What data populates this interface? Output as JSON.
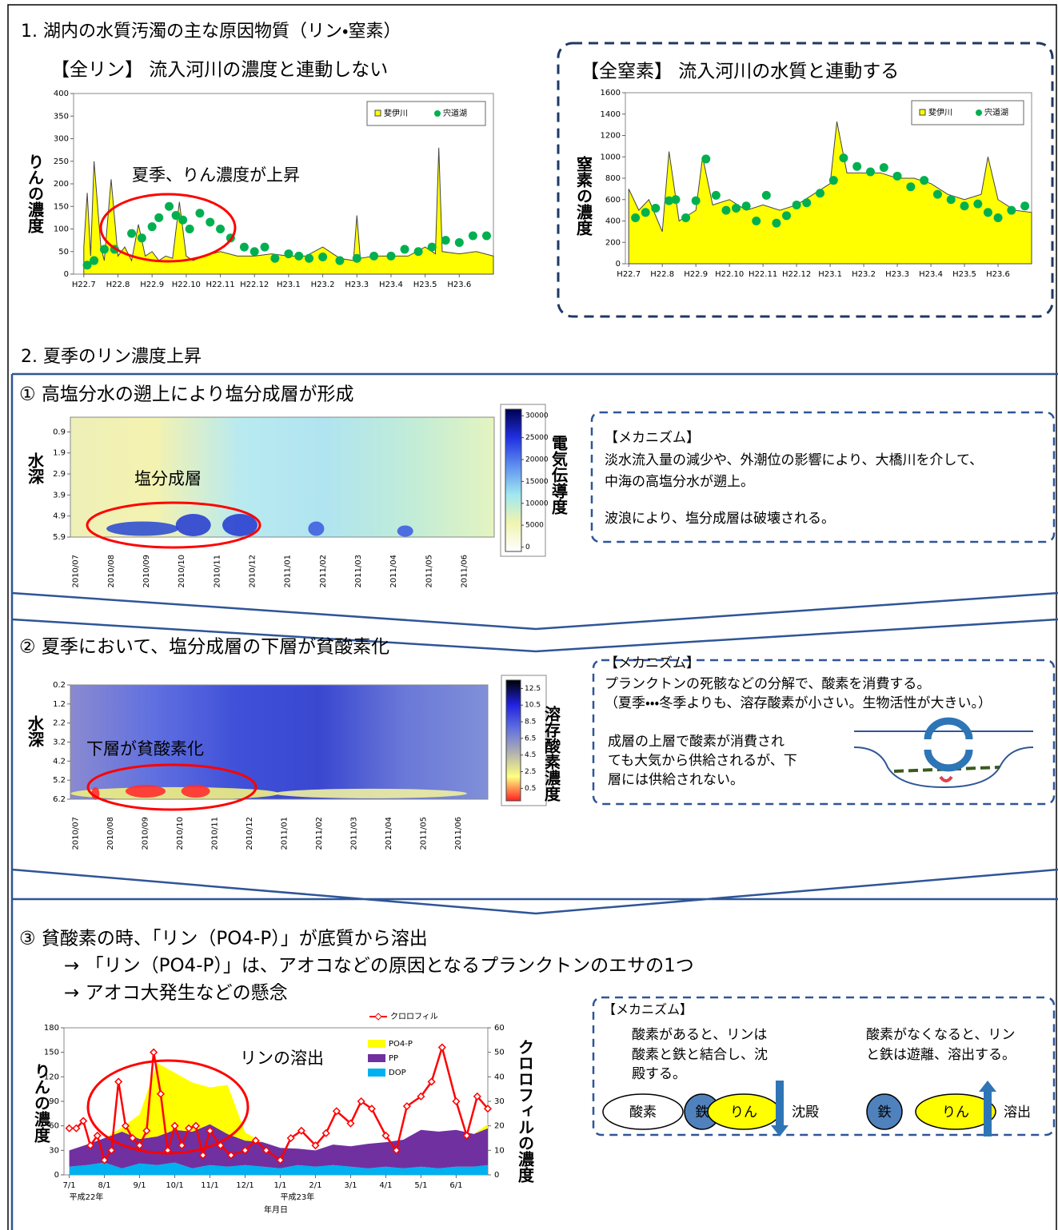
{
  "section1": {
    "title": "1. 湖内の水質汚濁の主な原因物質（リン・窒素）"
  },
  "section2": {
    "title": "2. 夏季のリン濃度上昇",
    "step1": {
      "title": "① 高塩分水の遡上により塩分成層が形成",
      "mechanism": {
        "heading": "【メカニズム】",
        "lines": [
          "淡水流入量の減少や、外潮位の影響により、大橋川を介して、",
          "中海の高塩分水が遡上。",
          "波浪により、塩分成層は破壊される。"
        ]
      }
    },
    "step2": {
      "title": "② 夏季において、塩分成層の下層が貧酸素化",
      "mechanism": {
        "heading": "【メカニズム】",
        "lines": [
          "プランクトンの死骸などの分解で、酸素を消費する。",
          "（夏季・・・冬季よりも、溶存酸素が小さい。生物活性が大きい。）",
          "成層の上層で酸素が消費され",
          "ても大気から供給されるが、下",
          "層には供給されない。"
        ]
      }
    },
    "step3": {
      "title": "③ 貧酸素の時、「リン（PO4-P）」が底質から溶出",
      "lines": [
        "→ 「リン（PO4-P）」は、アオコなどの原因となるプランクトンのエサの1つ",
        "→ アオコ大発生などの懸念"
      ],
      "mechanism": {
        "heading": "【メカニズム】",
        "left": [
          "酸素があると、リンは",
          "酸素と鉄と結合し、沈",
          "殿する。"
        ],
        "right": [
          "酸素がなくなると、リン",
          "と鉄は遊離、溶出する。"
        ],
        "left_labels": [
          "酸素",
          "鉄",
          "りん",
          "沈殿"
        ],
        "right_labels": [
          "鉄",
          "りん",
          "溶出"
        ]
      }
    }
  },
  "chart_data": [
    {
      "type": "area_scatter",
      "title": "【全リン】 流入河川の濃度と連動しない",
      "y_label": "りんの濃度",
      "annotation": "夏季、りん濃度が上昇",
      "xlim": [
        -0.3,
        12
      ],
      "xticks": [
        {
          "value": 0,
          "label": "H22.7"
        },
        {
          "value": 1,
          "label": "H22.8"
        },
        {
          "value": 2,
          "label": "H22.9"
        },
        {
          "value": 3,
          "label": "H22.10"
        },
        {
          "value": 4,
          "label": "H22.11"
        },
        {
          "value": 5,
          "label": "H22.12"
        },
        {
          "value": 6,
          "label": "H23.1"
        },
        {
          "value": 7,
          "label": "H23.2"
        },
        {
          "value": 8,
          "label": "H23.3"
        },
        {
          "value": 9,
          "label": "H23.4"
        },
        {
          "value": 10,
          "label": "H23.5"
        },
        {
          "value": 11,
          "label": "H23.6"
        }
      ],
      "ylim": [
        0,
        400
      ],
      "yticks": [
        0,
        50,
        100,
        150,
        200,
        250,
        300,
        350,
        400
      ],
      "legend": "upper right",
      "series": [
        {
          "name": "斐伊川",
          "style": "area",
          "color": "#ffff00",
          "x": [
            0,
            0.1,
            0.2,
            0.3,
            0.5,
            0.6,
            0.8,
            1,
            1.2,
            1.4,
            1.6,
            1.8,
            2,
            2.2,
            2.4,
            2.6,
            2.8,
            3,
            3.2,
            3.5,
            4,
            4.5,
            5,
            5.5,
            6,
            6.5,
            7,
            7.5,
            7.9,
            8,
            8.1,
            8.5,
            9,
            9.5,
            10,
            10.3,
            10.4,
            10.5,
            11,
            11.5,
            12
          ],
          "values": [
            60,
            180,
            40,
            250,
            60,
            30,
            210,
            40,
            60,
            30,
            110,
            40,
            50,
            30,
            40,
            35,
            160,
            40,
            30,
            40,
            50,
            40,
            40,
            45,
            40,
            40,
            60,
            35,
            30,
            130,
            35,
            40,
            40,
            40,
            60,
            45,
            280,
            50,
            45,
            50,
            40
          ]
        },
        {
          "name": "宍道湖",
          "style": "scatter",
          "color": "#00b050",
          "x": [
            0.1,
            0.3,
            0.6,
            0.9,
            1.4,
            1.7,
            2,
            2.2,
            2.5,
            2.7,
            2.9,
            3.1,
            3.4,
            3.7,
            4,
            4.3,
            4.7,
            5,
            5.3,
            5.6,
            6,
            6.3,
            6.6,
            7,
            7.5,
            8,
            8.5,
            9,
            9.4,
            9.8,
            10.2,
            10.6,
            11,
            11.4,
            11.8
          ],
          "values": [
            20,
            30,
            55,
            55,
            90,
            80,
            105,
            125,
            150,
            130,
            120,
            100,
            135,
            115,
            100,
            80,
            60,
            50,
            60,
            35,
            45,
            40,
            35,
            38,
            30,
            35,
            40,
            40,
            55,
            50,
            60,
            75,
            70,
            85,
            85
          ]
        }
      ]
    },
    {
      "type": "area_scatter",
      "title": "【全窒素】 流入河川の水質と連動する",
      "y_label": "窒素の濃度",
      "xlim": [
        -0.1,
        12
      ],
      "xticks": [
        {
          "value": 0,
          "label": "H22.7"
        },
        {
          "value": 1,
          "label": "H22.8"
        },
        {
          "value": 2,
          "label": "H22.9"
        },
        {
          "value": 3,
          "label": "H22.10"
        },
        {
          "value": 4,
          "label": "H22.11"
        },
        {
          "value": 5,
          "label": "H22.12"
        },
        {
          "value": 6,
          "label": "H23.1"
        },
        {
          "value": 7,
          "label": "H23.2"
        },
        {
          "value": 8,
          "label": "H23.3"
        },
        {
          "value": 9,
          "label": "H23.4"
        },
        {
          "value": 10,
          "label": "H23.5"
        },
        {
          "value": 11,
          "label": "H23.6"
        }
      ],
      "ylim": [
        0,
        1600
      ],
      "yticks": [
        0,
        200,
        400,
        600,
        800,
        1000,
        1200,
        1400,
        1600
      ],
      "legend": "upper right",
      "series": [
        {
          "name": "斐伊川",
          "style": "area",
          "color": "#ffff00",
          "x": [
            0,
            0.3,
            0.6,
            1,
            1.2,
            1.5,
            2,
            2.2,
            2.5,
            3,
            3.5,
            4,
            4.5,
            5,
            5.5,
            6,
            6.2,
            6.5,
            7,
            7.5,
            8,
            8.5,
            9,
            9.5,
            10,
            10.5,
            10.7,
            11,
            11.5,
            12
          ],
          "values": [
            700,
            500,
            600,
            300,
            1050,
            400,
            500,
            1000,
            550,
            600,
            500,
            550,
            500,
            550,
            650,
            750,
            1330,
            850,
            850,
            850,
            800,
            800,
            750,
            650,
            600,
            650,
            1000,
            600,
            500,
            480
          ]
        },
        {
          "name": "宍道湖",
          "style": "scatter",
          "color": "#00b050",
          "x": [
            0.2,
            0.5,
            0.8,
            1.2,
            1.4,
            1.7,
            2,
            2.3,
            2.6,
            2.9,
            3.2,
            3.5,
            3.8,
            4.1,
            4.4,
            4.7,
            5,
            5.3,
            5.7,
            6.1,
            6.4,
            6.8,
            7.2,
            7.6,
            8,
            8.4,
            8.8,
            9.2,
            9.6,
            10,
            10.4,
            10.7,
            11,
            11.4,
            11.8
          ],
          "values": [
            430,
            480,
            520,
            590,
            600,
            430,
            590,
            980,
            640,
            500,
            520,
            540,
            400,
            640,
            380,
            450,
            550,
            570,
            660,
            780,
            990,
            910,
            860,
            900,
            820,
            720,
            780,
            650,
            600,
            540,
            560,
            480,
            430,
            500,
            540
          ]
        }
      ]
    },
    {
      "type": "heatmap",
      "y_label": "水深",
      "annotation": "塩分成層",
      "colorbar_label": "電気伝導度",
      "categories": [
        "2010/07",
        "2010/08",
        "2010/09",
        "2010/10",
        "2010/11",
        "2010/12",
        "2011/01",
        "2011/02",
        "2011/03",
        "2011/04",
        "2011/05",
        "2011/06"
      ],
      "ylim": [
        0.2,
        5.9
      ],
      "y_inverted": true,
      "yticks": [
        0.9,
        1.9,
        2.9,
        3.9,
        4.9,
        5.9
      ],
      "colorbar_lim": [
        -1000,
        31500
      ],
      "colorbar_ticks": [
        0,
        5000,
        10000,
        15000,
        20000,
        25000,
        30000
      ],
      "colormap": [
        "#ffffff",
        "#f0f4b0",
        "#a0e8f0",
        "#6090f0",
        "#2030e0",
        "#000050"
      ]
    },
    {
      "type": "heatmap",
      "y_label": "水深",
      "annotation": "下層が貧酸素化",
      "colorbar_label": "溶存酸素濃度",
      "categories": [
        "2010/07",
        "2010/08",
        "2010/09",
        "2010/10",
        "2010/11",
        "2010/12",
        "2011/01",
        "2011/02",
        "2011/03",
        "2011/04",
        "2011/05",
        "2011/06"
      ],
      "ylim": [
        0.2,
        6.2
      ],
      "y_inverted": true,
      "yticks": [
        0.2,
        1.2,
        2.2,
        3.2,
        4.2,
        5.2,
        6.2
      ],
      "colorbar_lim": [
        -1,
        13.5
      ],
      "colorbar_ticks": [
        0.5,
        2.5,
        4.5,
        6.5,
        8.5,
        10.5,
        12.5
      ],
      "colormap": [
        "#ff2020",
        "#ffff80",
        "#b0b0b0",
        "#6070e0",
        "#2020e0",
        "#000000"
      ]
    },
    {
      "type": "stacked_area_line",
      "y_label": "りんの濃度",
      "y2_label": "クロロフィルの濃度",
      "annotation": "リンの溶出",
      "x_label": "年月日",
      "xlim": [
        -0.15,
        11.9
      ],
      "xticks": [
        {
          "value": 0,
          "label": "7/1"
        },
        {
          "value": 1,
          "label": "8/1"
        },
        {
          "value": 2,
          "label": "9/1"
        },
        {
          "value": 3,
          "label": "10/1"
        },
        {
          "value": 4,
          "label": "11/1"
        },
        {
          "value": 5,
          "label": "12/1"
        },
        {
          "value": 6,
          "label": "1/1"
        },
        {
          "value": 7,
          "label": "2/1"
        },
        {
          "value": 8,
          "label": "3/1"
        },
        {
          "value": 9,
          "label": "4/1"
        },
        {
          "value": 10,
          "label": "5/1"
        },
        {
          "value": 11,
          "label": "6/1"
        }
      ],
      "x_sublabels": [
        {
          "value": 0,
          "label": "平成22年"
        },
        {
          "value": 6,
          "label": "平成23年"
        }
      ],
      "ylim": [
        0,
        180
      ],
      "yticks": [
        0,
        30,
        60,
        90,
        120,
        150,
        180
      ],
      "y2lim": [
        0,
        60
      ],
      "y2ticks": [
        0,
        10,
        20,
        30,
        40,
        50,
        60
      ],
      "series": [
        {
          "name": "クロロフィル",
          "style": "line",
          "axis": "y2",
          "color": "#ff0000",
          "x": [
            0,
            0.2,
            0.4,
            0.6,
            0.8,
            1,
            1.2,
            1.4,
            1.6,
            1.8,
            2,
            2.2,
            2.4,
            2.6,
            2.8,
            3,
            3.2,
            3.4,
            3.6,
            3.8,
            4,
            4.3,
            4.6,
            5,
            5.3,
            5.6,
            6,
            6.3,
            6.6,
            7,
            7.3,
            7.6,
            8,
            8.3,
            8.6,
            9,
            9.3,
            9.6,
            10,
            10.3,
            10.6,
            11,
            11.3,
            11.6,
            11.9
          ],
          "values": [
            19,
            19,
            22,
            12,
            16,
            6,
            10,
            38,
            20,
            15,
            12,
            18,
            50,
            33,
            10,
            20,
            12,
            19,
            20,
            8,
            18,
            12,
            8,
            10,
            14,
            10,
            6,
            15,
            18,
            12,
            17,
            26,
            21,
            30,
            27,
            16,
            10,
            28,
            32,
            38,
            52,
            30,
            16,
            32,
            27
          ]
        },
        {
          "name": "PO4-P",
          "style": "stack",
          "color": "#ffff00",
          "x": [
            0,
            0.5,
            1,
            1.5,
            2,
            2.5,
            3,
            3.5,
            4,
            4.5,
            5,
            5.5,
            6,
            6.5,
            7,
            7.5,
            8,
            8.5,
            9,
            9.5,
            10,
            10.5,
            11,
            11.5,
            11.9
          ],
          "values": [
            0,
            0,
            0,
            5,
            30,
            90,
            70,
            60,
            45,
            60,
            10,
            0,
            0,
            0,
            0,
            0,
            0,
            0,
            0,
            0,
            0,
            0,
            0,
            0,
            5
          ]
        },
        {
          "name": "PP",
          "style": "stack",
          "color": "#7030a0",
          "x": [
            0,
            0.5,
            1,
            1.5,
            2,
            2.5,
            3,
            3.5,
            4,
            4.5,
            5,
            5.5,
            6,
            6.5,
            7,
            7.5,
            8,
            8.5,
            9,
            9.5,
            10,
            10.5,
            11,
            11.5,
            11.9
          ],
          "values": [
            20,
            25,
            30,
            45,
            30,
            35,
            40,
            45,
            50,
            40,
            30,
            30,
            25,
            20,
            20,
            25,
            25,
            30,
            30,
            35,
            45,
            45,
            45,
            40,
            45
          ]
        },
        {
          "name": "DOP",
          "style": "stack",
          "color": "#00b0f0",
          "x": [
            0,
            0.5,
            1,
            1.5,
            2,
            2.5,
            3,
            3.5,
            4,
            4.5,
            5,
            5.5,
            6,
            6.5,
            7,
            7.5,
            8,
            8.5,
            9,
            9.5,
            10,
            10.5,
            11,
            11.5,
            11.9
          ],
          "values": [
            10,
            12,
            15,
            8,
            14,
            12,
            15,
            8,
            12,
            10,
            12,
            10,
            8,
            12,
            10,
            12,
            10,
            8,
            10,
            8,
            10,
            8,
            10,
            10,
            12
          ]
        }
      ]
    }
  ]
}
